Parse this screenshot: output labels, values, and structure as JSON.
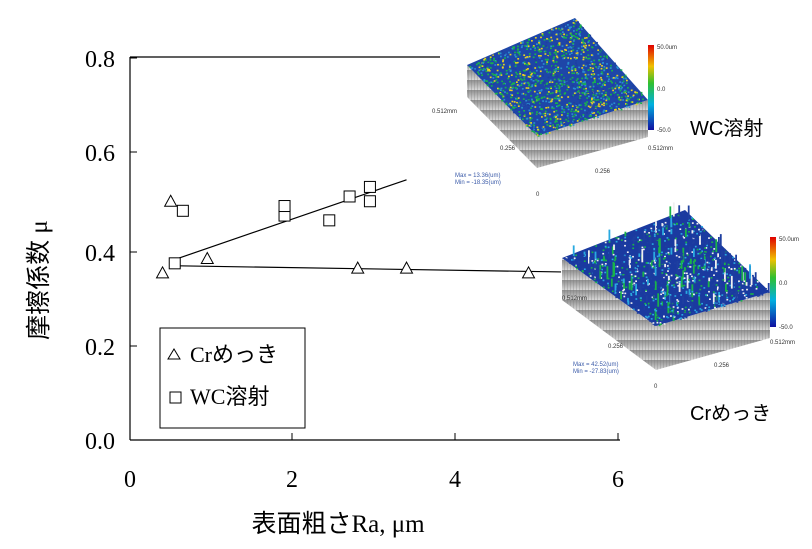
{
  "chart_data": {
    "type": "scatter",
    "xlabel": "表面粗さRa, μm",
    "ylabel": "摩擦係数 μ",
    "xlim": [
      0,
      6
    ],
    "ylim": [
      0,
      0.8
    ],
    "x_ticks": [
      "0",
      "2",
      "4",
      "6"
    ],
    "y_ticks": [
      "0.0",
      "0.2",
      "0.4",
      "0.6",
      "0.8"
    ],
    "grid": false,
    "legend_position": "bottom-left",
    "series": [
      {
        "name": "Crめっき",
        "marker": "triangle",
        "points": [
          [
            0.4,
            0.35
          ],
          [
            0.5,
            0.5
          ],
          [
            0.95,
            0.38
          ],
          [
            2.8,
            0.36
          ],
          [
            3.4,
            0.36
          ],
          [
            4.9,
            0.35
          ]
        ],
        "trend": [
          [
            0.5,
            0.365
          ],
          [
            5.3,
            0.352
          ]
        ]
      },
      {
        "name": "WC溶射",
        "marker": "square",
        "points": [
          [
            0.55,
            0.37
          ],
          [
            0.65,
            0.48
          ],
          [
            1.9,
            0.47
          ],
          [
            1.9,
            0.49
          ],
          [
            2.45,
            0.46
          ],
          [
            2.7,
            0.51
          ],
          [
            2.95,
            0.5
          ],
          [
            2.95,
            0.53
          ]
        ],
        "trend": [
          [
            0.5,
            0.375
          ],
          [
            3.4,
            0.545
          ]
        ]
      }
    ]
  },
  "insets": {
    "wc": {
      "label": "WC溶射",
      "max_text": "Max = 13.36(um)",
      "min_text": "Min = -18.35(um)",
      "scale_top": "50.0um",
      "scale_mid": "0.0",
      "scale_bottom": "-50.0",
      "axis_left": "0.512mm",
      "axis_mid1": "0.256",
      "axis_mid2": "0.256",
      "axis_zero": "0",
      "axis_right": "0.512mm"
    },
    "cr": {
      "label": "Crめっき",
      "max_text": "Max = 42.52(um)",
      "min_text": "Min = -27.83(um)",
      "scale_top": "50.0um",
      "scale_mid": "0.0",
      "scale_bottom": "-50.0",
      "axis_left": "0.512mm",
      "axis_mid1": "0.256",
      "axis_mid2": "0.256",
      "axis_zero": "0",
      "axis_right": "0.512mm"
    }
  },
  "colors": {
    "surface_low": "#1e3fa0",
    "surface_mid": "#19b34a",
    "surface_high": "#e8d21e",
    "wall": "#9a9a9a"
  }
}
